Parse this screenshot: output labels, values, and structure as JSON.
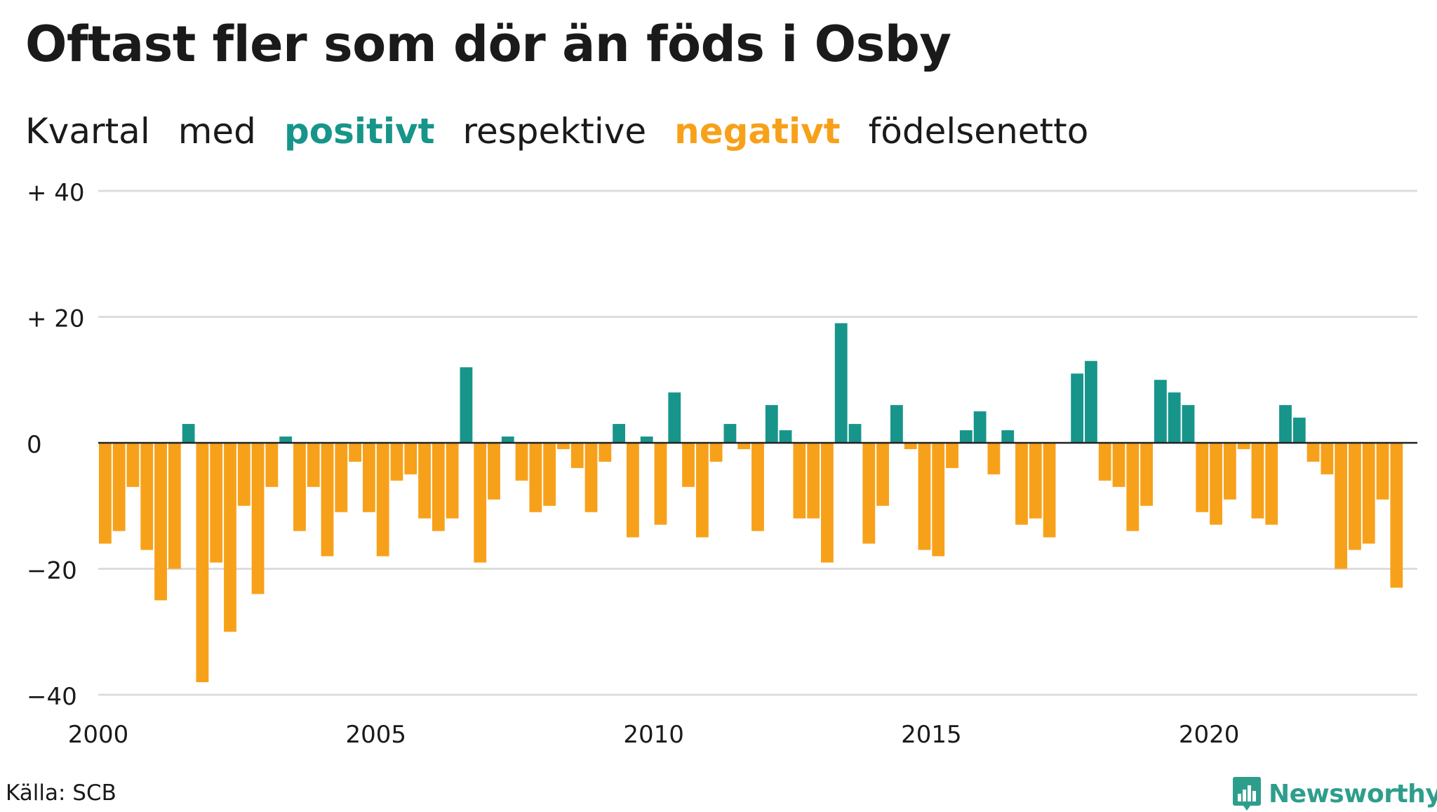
{
  "title": "Oftast fler som dör än föds i Osby",
  "subtitle": {
    "w1": "Kvartal",
    "w2": "med",
    "positive": "positivt",
    "w3": "respektive",
    "negative": "negativt",
    "w4": "födelsenetto"
  },
  "source": "Källa: SCB",
  "logo": {
    "text": "Newsworthy",
    "icon": "bar-chart-pin-icon"
  },
  "colors": {
    "positive": "#17958a",
    "negative": "#f7a11a",
    "grid": "#dddddd",
    "axis": "#222222"
  },
  "chart_data": {
    "type": "bar",
    "title": "Oftast fler som dör än föds i Osby",
    "subtitle": "Kvartal med positivt respektive negativt födelsenetto",
    "x_start": 2000,
    "x_step": 0.25,
    "xlim": [
      2000,
      2023.75
    ],
    "ylim": [
      -40,
      40
    ],
    "y_ticks": [
      {
        "value": 40,
        "label": "+ 40"
      },
      {
        "value": 20,
        "label": "+ 20"
      },
      {
        "value": 0,
        "label": "0"
      },
      {
        "value": -20,
        "label": "−20"
      },
      {
        "value": -40,
        "label": "−40"
      }
    ],
    "x_ticks": [
      {
        "value": 2000,
        "label": "2000"
      },
      {
        "value": 2005,
        "label": "2005"
      },
      {
        "value": 2010,
        "label": "2010"
      },
      {
        "value": 2015,
        "label": "2015"
      },
      {
        "value": 2020,
        "label": "2020"
      }
    ],
    "grid": true,
    "values": [
      -16,
      -14,
      -7,
      -17,
      -25,
      -20,
      3,
      -38,
      -19,
      -30,
      -10,
      -24,
      -7,
      1,
      -14,
      -7,
      -18,
      -11,
      -3,
      -11,
      -18,
      -6,
      -5,
      -12,
      -14,
      -12,
      12,
      -19,
      -9,
      1,
      -6,
      -11,
      -10,
      -1,
      -4,
      -11,
      -3,
      3,
      -15,
      1,
      -13,
      8,
      -7,
      -15,
      -3,
      3,
      -1,
      -14,
      6,
      2,
      -12,
      -12,
      -19,
      19,
      3,
      -16,
      -10,
      6,
      -1,
      -17,
      -18,
      -4,
      2,
      5,
      -5,
      2,
      -13,
      -12,
      -15,
      0,
      11,
      13,
      -6,
      -7,
      -14,
      -10,
      10,
      8,
      6,
      -11,
      -13,
      -9,
      -1,
      -12,
      -13,
      6,
      4,
      -3,
      -5,
      -20,
      -17,
      -16,
      -9,
      -23
    ]
  }
}
